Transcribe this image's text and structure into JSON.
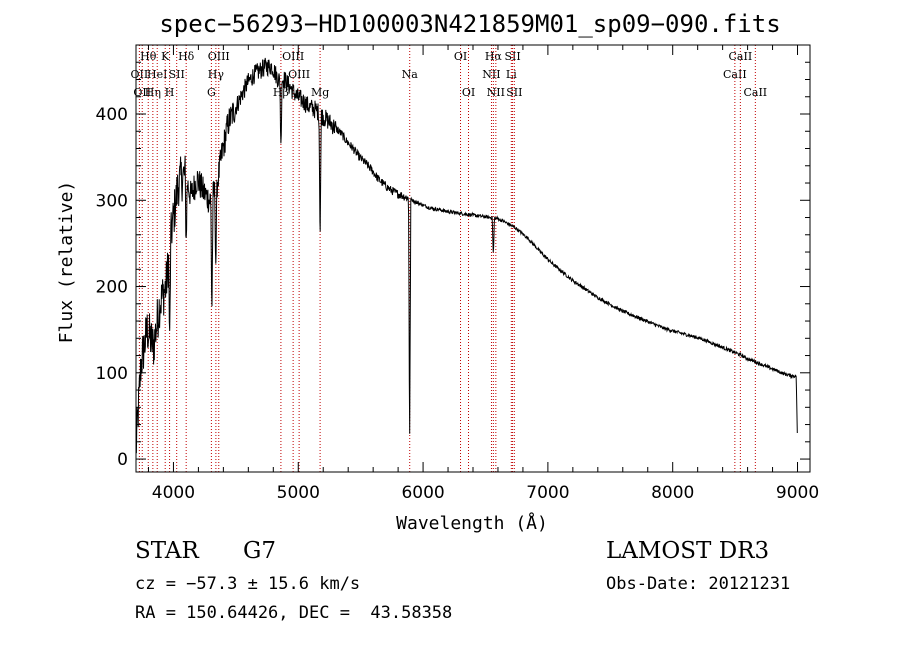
{
  "chart_data": {
    "type": "line",
    "title": "spec−56293−HD100003N421859M01_sp09−090.fits",
    "xlabel": "Wavelength (Å)",
    "ylabel": "Flux (relative)",
    "xlim": [
      3700,
      9100
    ],
    "ylim": [
      -15,
      480
    ],
    "xticks": [
      4000,
      5000,
      6000,
      7000,
      8000,
      9000
    ],
    "yticks": [
      0,
      100,
      200,
      300,
      400
    ],
    "series": [
      {
        "name": "spectrum",
        "x": [
          3700,
          3740,
          3790,
          3840,
          3890,
          3940,
          3990,
          4040,
          4090,
          4140,
          4190,
          4240,
          4290,
          4340,
          4390,
          4440,
          4490,
          4540,
          4590,
          4640,
          4690,
          4740,
          4790,
          4840,
          4890,
          4940,
          4990,
          5040,
          5090,
          5140,
          5190,
          5240,
          5290,
          5340,
          5390,
          5440,
          5490,
          5540,
          5590,
          5640,
          5690,
          5740,
          5790,
          5840,
          5890,
          5940,
          5990,
          6040,
          6090,
          6140,
          6190,
          6240,
          6290,
          6340,
          6390,
          6440,
          6490,
          6540,
          6590,
          6640,
          6690,
          6740,
          6790,
          6840,
          6890,
          6940,
          6990,
          7040,
          7090,
          7140,
          7190,
          7240,
          7290,
          7340,
          7390,
          7440,
          7490,
          7540,
          7590,
          7640,
          7690,
          7740,
          7790,
          7840,
          7890,
          7940,
          7990,
          8040,
          8090,
          8140,
          8190,
          8240,
          8290,
          8340,
          8390,
          8440,
          8490,
          8540,
          8590,
          8640,
          8690,
          8740,
          8790,
          8840,
          8890,
          8940,
          8990,
          9000
        ],
        "values": [
          10,
          110,
          150,
          130,
          180,
          200,
          270,
          320,
          330,
          305,
          325,
          310,
          300,
          310,
          355,
          390,
          405,
          420,
          435,
          445,
          450,
          455,
          455,
          440,
          440,
          430,
          420,
          415,
          408,
          405,
          398,
          392,
          385,
          378,
          368,
          360,
          350,
          343,
          335,
          325,
          318,
          312,
          308,
          305,
          302,
          298,
          295,
          292,
          290,
          289,
          287,
          286,
          285,
          284,
          283,
          282,
          281,
          280,
          279,
          276,
          272,
          268,
          262,
          256,
          248,
          240,
          233,
          226,
          220,
          214,
          208,
          203,
          198,
          193,
          188,
          184,
          180,
          176,
          172,
          169,
          166,
          163,
          160,
          157,
          154,
          151,
          149,
          147,
          145,
          143,
          141,
          139,
          136,
          133,
          130,
          127,
          124,
          121,
          117,
          114,
          111,
          108,
          105,
          102,
          99,
          97,
          96,
          12
        ]
      }
    ],
    "absorption_dips": [
      {
        "wavelength": 3970,
        "depth": 110
      },
      {
        "wavelength": 4102,
        "depth": 70
      },
      {
        "wavelength": 4308,
        "depth": 140
      },
      {
        "wavelength": 4340,
        "depth": 90
      },
      {
        "wavelength": 4861,
        "depth": 80
      },
      {
        "wavelength": 5175,
        "depth": 150
      },
      {
        "wavelength": 5890,
        "depth": 50
      },
      {
        "wavelength": 5893,
        "depth": 240
      },
      {
        "wavelength": 6563,
        "depth": 45
      }
    ],
    "line_markers": [
      {
        "wavelength": 3727,
        "label": "OII",
        "row": 2
      },
      {
        "wavelength": 3750,
        "label": "OII",
        "row": 3
      },
      {
        "wavelength": 3798,
        "label": "Hθ",
        "row": 1
      },
      {
        "wavelength": 3835,
        "label": "Hη",
        "row": 3
      },
      {
        "wavelength": 3870,
        "label": "HeI",
        "row": 2
      },
      {
        "wavelength": 3934,
        "label": "K",
        "row": 1
      },
      {
        "wavelength": 3969,
        "label": "H",
        "row": 3
      },
      {
        "wavelength": 4026,
        "label": "SII",
        "row": 2
      },
      {
        "wavelength": 4102,
        "label": "Hδ",
        "row": 1
      },
      {
        "wavelength": 4304,
        "label": "G",
        "row": 3
      },
      {
        "wavelength": 4340,
        "label": "Hγ",
        "row": 2
      },
      {
        "wavelength": 4363,
        "label": "OIII",
        "row": 1
      },
      {
        "wavelength": 4861,
        "label": "Hβ",
        "row": 3
      },
      {
        "wavelength": 4959,
        "label": "OIII",
        "row": 1
      },
      {
        "wavelength": 5007,
        "label": "OIII",
        "row": 2
      },
      {
        "wavelength": 5175,
        "label": "Mg",
        "row": 3
      },
      {
        "wavelength": 5893,
        "label": "Na",
        "row": 2
      },
      {
        "wavelength": 6300,
        "label": "OI",
        "row": 1
      },
      {
        "wavelength": 6364,
        "label": "OI",
        "row": 3
      },
      {
        "wavelength": 6548,
        "label": "NII",
        "row": 2
      },
      {
        "wavelength": 6563,
        "label": "Hα",
        "row": 1
      },
      {
        "wavelength": 6583,
        "label": "NII",
        "row": 3
      },
      {
        "wavelength": 6707,
        "label": "Li",
        "row": 2
      },
      {
        "wavelength": 6717,
        "label": "SII",
        "row": 1
      },
      {
        "wavelength": 6731,
        "label": "SII",
        "row": 3
      },
      {
        "wavelength": 8498,
        "label": "CaII",
        "row": 2
      },
      {
        "wavelength": 8542,
        "label": "CaII",
        "row": 1
      },
      {
        "wavelength": 8662,
        "label": "CaII",
        "row": 3
      }
    ]
  },
  "footer": {
    "class_label": "STAR",
    "subclass": "G7",
    "survey": "LAMOST DR3",
    "redshift_line": "cz = −57.3 ± 15.6 km/s",
    "obs_date_line": "Obs-Date: 20121231",
    "coords_line": "RA = 150.64426, DEC =  43.58358"
  },
  "colors": {
    "axis": "#000000",
    "spectrum": "#000000",
    "marker_line": "#c00000"
  }
}
